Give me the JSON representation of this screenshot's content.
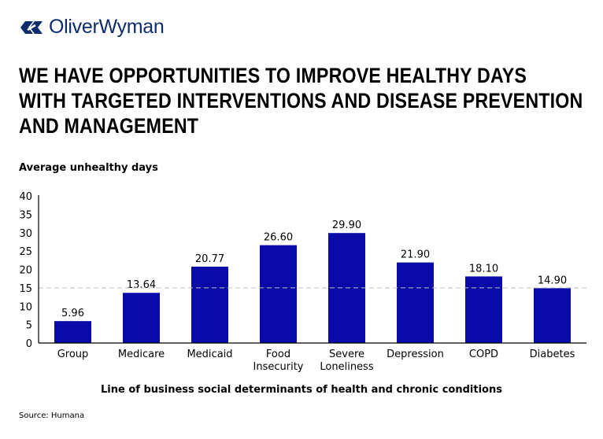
{
  "logo": {
    "text": "OliverWyman"
  },
  "title_lines": [
    "WE HAVE OPPORTUNITIES TO IMPROVE HEALTHY DAYS",
    "WITH TARGETED INTERVENTIONS AND DISEASE PREVENTION",
    "AND MANAGEMENT"
  ],
  "source": "Source: Humana",
  "chart_data": {
    "type": "bar",
    "ylabel": "Average unhealthy days",
    "xlabel": "Line of business social determinants of health and chronic conditions",
    "categories": [
      [
        "Group"
      ],
      [
        "Medicare"
      ],
      [
        "Medicaid"
      ],
      [
        "Food",
        "Insecurity"
      ],
      [
        "Severe",
        "Loneliness"
      ],
      [
        "Depression"
      ],
      [
        "COPD"
      ],
      [
        "Diabetes"
      ]
    ],
    "values": [
      5.96,
      13.64,
      20.77,
      26.6,
      29.9,
      21.9,
      18.1,
      14.9
    ],
    "data_labels": [
      "5.96",
      "13.64",
      "20.77",
      "26.60",
      "29.90",
      "21.90",
      "18.10",
      "14.90"
    ],
    "ylim": [
      0,
      40
    ],
    "yticks": [
      0,
      5,
      10,
      15,
      20,
      25,
      30,
      35,
      40
    ],
    "reference_line": 15,
    "grid": false,
    "bar_color": "#0a0aa8",
    "reference_line_color": "#bfbfbf"
  }
}
